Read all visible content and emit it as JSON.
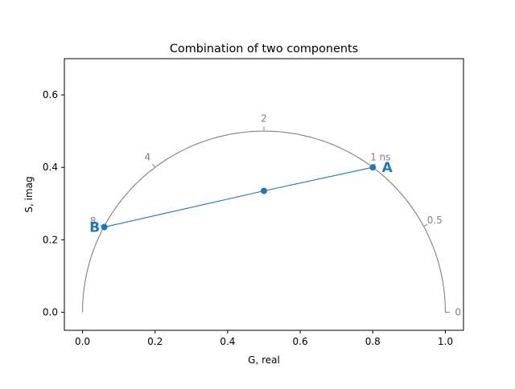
{
  "chart_data": {
    "type": "line",
    "title": "Combination of two components",
    "xlabel": "G, real",
    "ylabel": "S, imag",
    "xlim": [
      -0.05,
      1.05
    ],
    "ylim": [
      -0.05,
      0.7
    ],
    "grid": false,
    "xticks": [
      0.0,
      0.2,
      0.4,
      0.6,
      0.8,
      1.0
    ],
    "xtick_labels": [
      "0.0",
      "0.2",
      "0.4",
      "0.6",
      "0.8",
      "1.0"
    ],
    "yticks": [
      0.0,
      0.2,
      0.4,
      0.6
    ],
    "ytick_labels": [
      "0.0",
      "0.2",
      "0.4",
      "0.6"
    ],
    "colors": {
      "semicircle": "#808080",
      "series": "#1f77b4",
      "axes": "#000000"
    },
    "semicircle": {
      "center": [
        0.5,
        0.0
      ],
      "radius": 0.5,
      "lifetime_ticks": [
        {
          "label": "0",
          "g": 1.0,
          "s": 0.0
        },
        {
          "label": "0.5",
          "g": 0.94,
          "s": 0.237
        },
        {
          "label": "1 ns",
          "g": 0.8,
          "s": 0.4
        },
        {
          "label": "2",
          "g": 0.5,
          "s": 0.5
        },
        {
          "label": "4",
          "g": 0.2,
          "s": 0.4
        },
        {
          "label": "8",
          "g": 0.06,
          "s": 0.235
        }
      ]
    },
    "series": [
      {
        "points": [
          {
            "g": 0.8,
            "s": 0.4
          },
          {
            "g": 0.5,
            "s": 0.335
          },
          {
            "g": 0.06,
            "s": 0.235
          }
        ]
      }
    ],
    "annotations": [
      {
        "label": "A",
        "g": 0.8,
        "s": 0.4
      },
      {
        "label": "B",
        "g": 0.06,
        "s": 0.235
      }
    ]
  }
}
